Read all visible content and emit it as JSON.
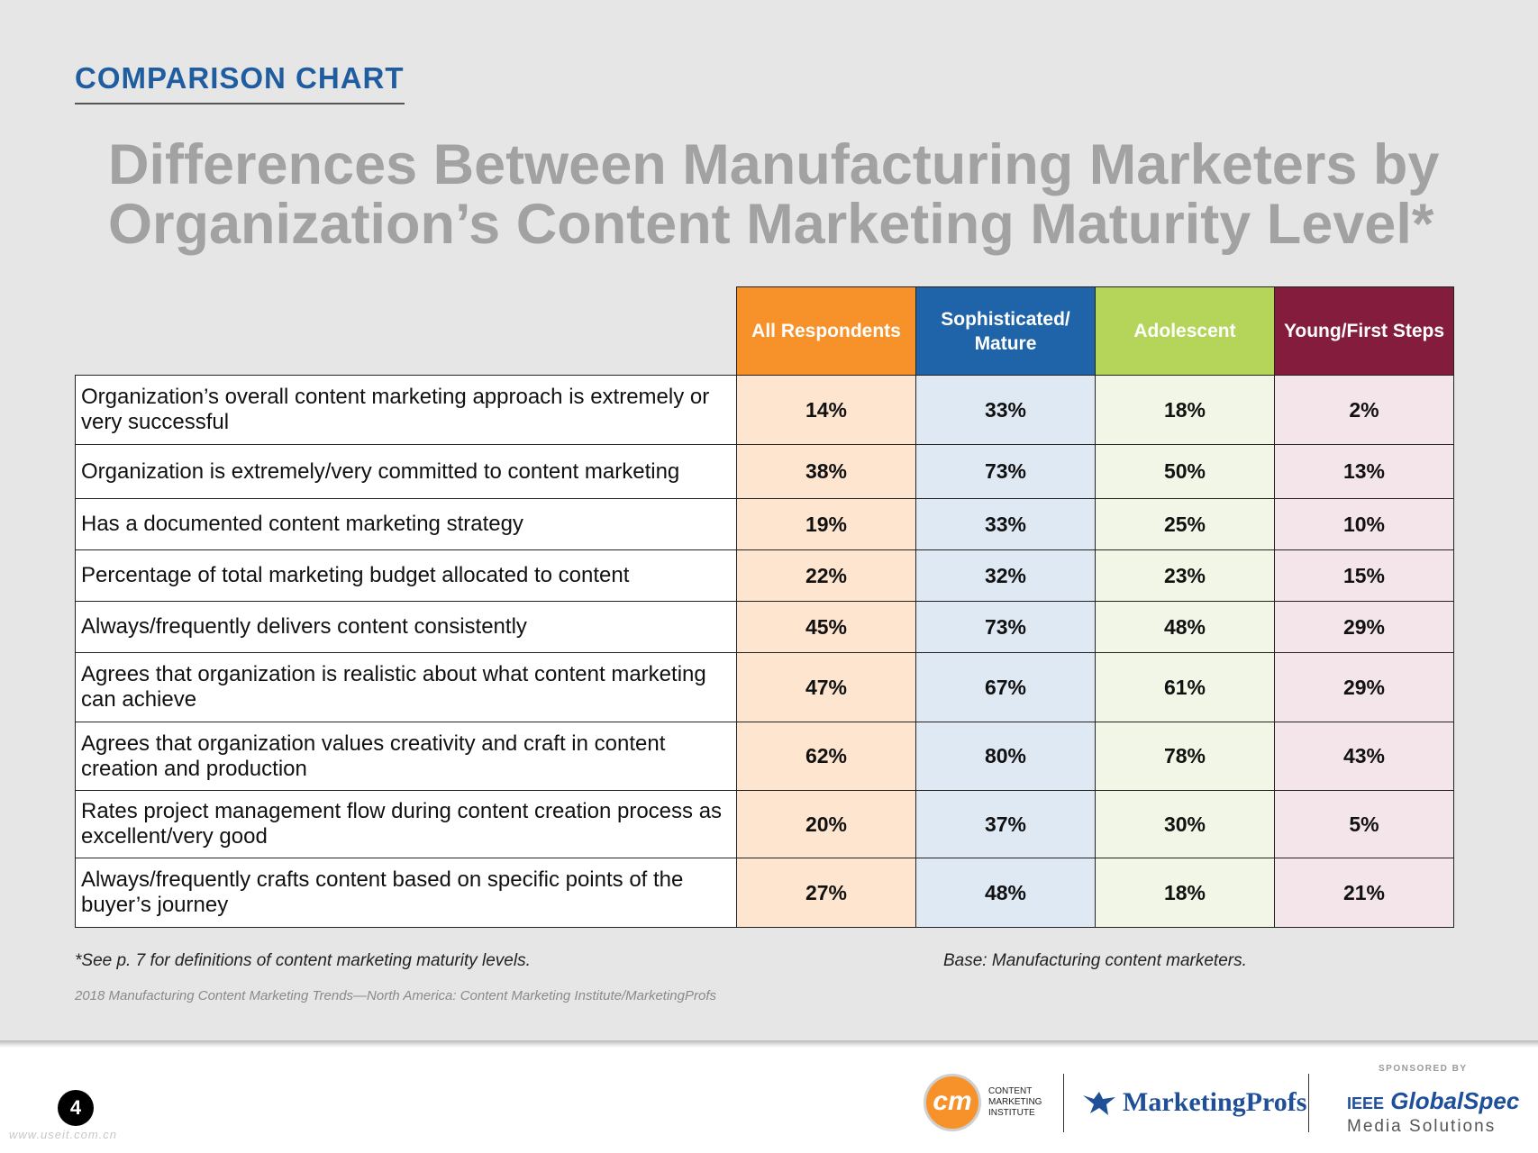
{
  "section_label": "COMPARISON CHART",
  "title_lines": [
    "Differences Between Manufacturing Marketers by",
    "Organization’s Content Marketing Maturity Level*"
  ],
  "table": {
    "headers": [
      "All Respondents",
      "Sophisticated/ Mature",
      "Adolescent",
      "Young/First Steps"
    ],
    "rows": [
      {
        "label": "Organization’s overall content marketing approach is extremely or very successful",
        "values": [
          "14%",
          "33%",
          "18%",
          "2%"
        ]
      },
      {
        "label": "Organization is extremely/very committed to content marketing",
        "values": [
          "38%",
          "73%",
          "50%",
          "13%"
        ]
      },
      {
        "label": "Has a documented content marketing strategy",
        "values": [
          "19%",
          "33%",
          "25%",
          "10%"
        ]
      },
      {
        "label": "Percentage of total marketing budget allocated to content",
        "values": [
          "22%",
          "32%",
          "23%",
          "15%"
        ]
      },
      {
        "label": "Always/frequently delivers content consistently",
        "values": [
          "45%",
          "73%",
          "48%",
          "29%"
        ]
      },
      {
        "label": "Agrees that organization is realistic about what content marketing can achieve",
        "values": [
          "47%",
          "67%",
          "61%",
          "29%"
        ]
      },
      {
        "label": "Agrees that organization values creativity and craft in content creation and production",
        "values": [
          "62%",
          "80%",
          "78%",
          "43%"
        ]
      },
      {
        "label": "Rates project management flow during content creation process as excellent/very good",
        "values": [
          "20%",
          "37%",
          "30%",
          "5%"
        ]
      },
      {
        "label": "Always/frequently crafts content based on specific points of the buyer’s journey",
        "values": [
          "27%",
          "48%",
          "18%",
          "21%"
        ]
      }
    ]
  },
  "footnote": "*See p. 7 for definitions of content marketing maturity levels.",
  "base_note": "Base: Manufacturing content marketers.",
  "source": "2018 Manufacturing Content Marketing Trends—North America: Content Marketing Institute/MarketingProfs",
  "page_number": "4",
  "watermark": "www.useit.com.cn",
  "footer": {
    "cmi_logo_text": "cm",
    "cmi_name": "CONTENT MARKETING INSTITUTE",
    "marketingprofs": "MarketingProfs",
    "sponsored_by": "SPONSORED BY",
    "ieee_word": "IEEE",
    "globalspec": "GlobalSpec",
    "media_solutions": "Media Solutions"
  }
}
